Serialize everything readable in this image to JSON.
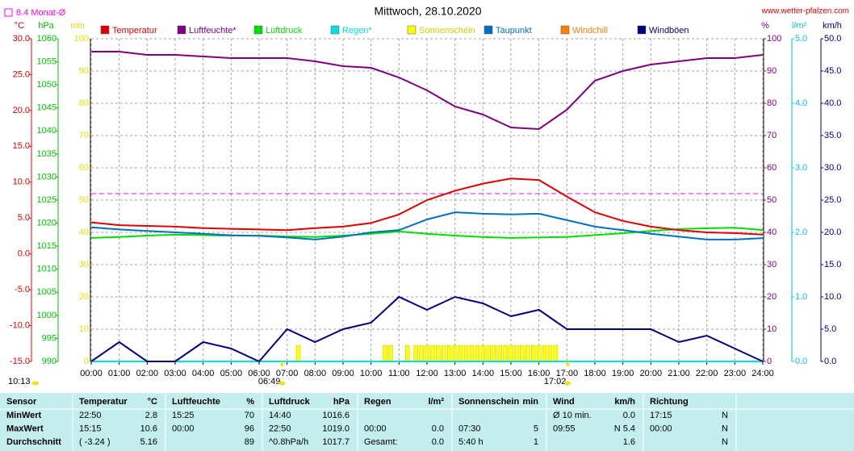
{
  "header": {
    "title": "Mittwoch, 28.10.2020",
    "url": "www.wetter-pfalzen.com"
  },
  "chart_data": {
    "type": "line",
    "x": [
      0,
      1,
      2,
      3,
      4,
      5,
      6,
      7,
      8,
      9,
      10,
      11,
      12,
      13,
      14,
      15,
      16,
      17,
      18,
      19,
      20,
      21,
      22,
      23,
      24
    ],
    "xlim": [
      0,
      24
    ],
    "xticks": [
      {
        "value": 0,
        "label": "00:00"
      },
      {
        "value": 1,
        "label": "01:00"
      },
      {
        "value": 2,
        "label": "02:00"
      },
      {
        "value": 3,
        "label": "03:00"
      },
      {
        "value": 4,
        "label": "04:00"
      },
      {
        "value": 5,
        "label": "05:00"
      },
      {
        "value": 6,
        "label": "06:00"
      },
      {
        "value": 7,
        "label": "07:00"
      },
      {
        "value": 8,
        "label": "08:00"
      },
      {
        "value": 9,
        "label": "09:00"
      },
      {
        "value": 10,
        "label": "10:00"
      },
      {
        "value": 11,
        "label": "11:00"
      },
      {
        "value": 12,
        "label": "12:00"
      },
      {
        "value": 13,
        "label": "13:00"
      },
      {
        "value": 14,
        "label": "14:00"
      },
      {
        "value": 15,
        "label": "15:00"
      },
      {
        "value": 16,
        "label": "16:00"
      },
      {
        "value": 17,
        "label": "17:00"
      },
      {
        "value": 18,
        "label": "18:00"
      },
      {
        "value": 19,
        "label": "19:00"
      },
      {
        "value": 20,
        "label": "20:00"
      },
      {
        "value": 21,
        "label": "21:00"
      },
      {
        "value": 22,
        "label": "22:00"
      },
      {
        "value": 23,
        "label": "23:00"
      },
      {
        "value": 24,
        "label": "24:00"
      }
    ],
    "grid": true,
    "axes": [
      {
        "label": "°C",
        "color": "#e00000",
        "lim": [
          -15,
          30
        ],
        "ticks": [
          {
            "value": 30,
            "label": "30.0"
          },
          {
            "value": 25,
            "label": "25.0"
          },
          {
            "value": 20,
            "label": "20.0"
          },
          {
            "value": 15,
            "label": "15.0"
          },
          {
            "value": 10,
            "label": "10.0"
          },
          {
            "value": 5,
            "label": "5.0"
          },
          {
            "value": 0,
            "label": "0.0"
          },
          {
            "value": -5,
            "label": "-5.0"
          },
          {
            "value": -10,
            "label": "-10.0"
          },
          {
            "value": -15,
            "label": "-15.0"
          }
        ]
      },
      {
        "label": "hPa",
        "color": "#00c000",
        "lim": [
          990,
          1060
        ],
        "ticks": [
          1060,
          1055,
          1050,
          1045,
          1040,
          1035,
          1030,
          1025,
          1020,
          1015,
          1010,
          1005,
          1000,
          995,
          990
        ]
      },
      {
        "label": "min",
        "color": "#e0e000",
        "lim": [
          0,
          100
        ],
        "ticks": [
          100,
          90,
          80,
          70,
          60,
          50,
          40,
          30,
          20,
          10,
          0
        ]
      },
      {
        "label": "%",
        "color": "#800080",
        "lim": [
          0,
          100
        ],
        "ticks": [
          100,
          90,
          80,
          70,
          60,
          50,
          40,
          30,
          20,
          10,
          0
        ]
      },
      {
        "label": "l/m²",
        "color": "#00c8c8",
        "lim": [
          0,
          5
        ],
        "ticks": [
          {
            "value": 5,
            "label": "5.0"
          },
          {
            "value": 4,
            "label": "4.0"
          },
          {
            "value": 3,
            "label": "3.0"
          },
          {
            "value": 2,
            "label": "2.0"
          },
          {
            "value": 1,
            "label": "1.0"
          },
          {
            "value": 0,
            "label": "0.0"
          }
        ]
      },
      {
        "label": "km/h",
        "color": "#000080",
        "lim": [
          0,
          50
        ],
        "ticks": [
          {
            "value": 50,
            "label": "50.0"
          },
          {
            "value": 45,
            "label": "45.0"
          },
          {
            "value": 40,
            "label": "40.0"
          },
          {
            "value": 35,
            "label": "35.0"
          },
          {
            "value": 30,
            "label": "30.0"
          },
          {
            "value": 25,
            "label": "25.0"
          },
          {
            "value": 20,
            "label": "20.0"
          },
          {
            "value": 15,
            "label": "15.0"
          },
          {
            "value": 10,
            "label": "10.0"
          },
          {
            "value": 5,
            "label": "5.0"
          },
          {
            "value": 0,
            "label": "0.0"
          }
        ]
      }
    ],
    "reference": {
      "label": "8.4 Monat-Ø",
      "value": 8.4,
      "color": "#ff00ff",
      "axis": 0
    },
    "series": [
      {
        "name": "Temperatur",
        "color": "#e00000",
        "axis": 0,
        "values": [
          4.4,
          4.0,
          3.9,
          3.8,
          3.6,
          3.5,
          3.4,
          3.3,
          3.6,
          3.8,
          4.3,
          5.5,
          7.5,
          8.8,
          9.8,
          10.5,
          10.3,
          8.0,
          5.8,
          4.6,
          3.8,
          3.3,
          3.0,
          2.9,
          2.7
        ]
      },
      {
        "name": "Luftfeuchte*",
        "color": "#800080",
        "axis": 3,
        "values": [
          96,
          96,
          95,
          95,
          94.5,
          94,
          94,
          94,
          93,
          91.5,
          91,
          88,
          84,
          79,
          76.5,
          72.5,
          72,
          78,
          87,
          90,
          92,
          93,
          94,
          94,
          95
        ]
      },
      {
        "name": "Luftdruck",
        "color": "#00e000",
        "axis": 1,
        "values": [
          1016.8,
          1017.0,
          1017.3,
          1017.5,
          1017.4,
          1017.3,
          1017.3,
          1017.1,
          1017.0,
          1017.3,
          1017.7,
          1018.2,
          1017.7,
          1017.3,
          1017.0,
          1016.8,
          1016.9,
          1017.0,
          1017.4,
          1017.8,
          1018.3,
          1018.7,
          1018.9,
          1019.0,
          1018.5
        ]
      },
      {
        "name": "Regen*",
        "color": "#00e0e0",
        "axis": 4,
        "values": [
          0,
          0,
          0,
          0,
          0,
          0,
          0,
          0,
          0,
          0,
          0,
          0,
          0,
          0,
          0,
          0,
          0,
          0,
          0,
          0,
          0,
          0,
          0,
          0,
          0
        ]
      },
      {
        "name": "Sonnenschein",
        "color": "#ffff00",
        "axis": 2,
        "type": "bar",
        "x": [
          7.4,
          10.5,
          10.7,
          11.3,
          11.6,
          11.8,
          12.0,
          12.2,
          12.4,
          12.6,
          12.8,
          13.0,
          13.2,
          13.4,
          13.6,
          13.8,
          14.0,
          14.2,
          14.4,
          14.6,
          14.8,
          15.0,
          15.2,
          15.4,
          15.6,
          15.8,
          16.0,
          16.2,
          16.4,
          16.6
        ],
        "values": [
          5,
          5,
          5,
          5,
          5,
          5,
          5,
          5,
          5,
          5,
          5,
          5,
          5,
          5,
          5,
          5,
          5,
          5,
          5,
          5,
          5,
          5,
          5,
          5,
          5,
          5,
          5,
          5,
          5,
          5
        ]
      },
      {
        "name": "Taupunkt",
        "color": "#0070c0",
        "axis": 0,
        "values": [
          3.7,
          3.4,
          3.2,
          3.0,
          2.8,
          2.6,
          2.5,
          2.3,
          2.0,
          2.4,
          3.0,
          3.3,
          4.8,
          5.8,
          5.6,
          5.5,
          5.6,
          4.7,
          3.8,
          3.3,
          2.8,
          2.4,
          2.0,
          2.0,
          2.2
        ]
      },
      {
        "name": "Windchill",
        "color": "#ff8000",
        "axis": 0
      },
      {
        "name": "Windböen",
        "color": "#000080",
        "axis": 5,
        "values": [
          0,
          3,
          0,
          0,
          3,
          2,
          0,
          5,
          3,
          5,
          6,
          10,
          8,
          10,
          9,
          7,
          8,
          5,
          5,
          5,
          5,
          3,
          4,
          2,
          0
        ]
      }
    ],
    "annotations": [
      {
        "text": "10:13"
      },
      {
        "text": "06:49",
        "x": 6.82
      },
      {
        "text": "17:02",
        "x": 17.03
      }
    ]
  },
  "table": {
    "header": [
      "Sensor",
      "Temperatur",
      "°C",
      "Luftfeuchte",
      "%",
      "Luftdruck",
      "hPa",
      "Regen",
      "l/m²",
      "Sonnenschein",
      "min",
      "Wind",
      "km/h",
      "Richtung",
      null
    ],
    "rows": [
      [
        "MinWert",
        "22:50",
        "2.8",
        "15:25",
        "70",
        "14:40",
        "1016.6",
        null,
        null,
        null,
        null,
        "Ø 10 min.",
        "0.0",
        "17:15",
        "N"
      ],
      [
        "MaxWert",
        "15:15",
        "10.6",
        "00:00",
        "96",
        "22:50",
        "1019.0",
        "00:00",
        "0.0",
        "07:30",
        "5",
        "09:55",
        "N 5.4",
        "00:00",
        "N"
      ],
      [
        "Durchschnitt",
        "( -3.24 )",
        "5.16",
        null,
        "89",
        "^0.8hPa/h",
        "1017.7",
        "Gesamt:",
        "0.0",
        "5:40 h",
        "1",
        null,
        "1.6",
        null,
        "N"
      ]
    ]
  }
}
